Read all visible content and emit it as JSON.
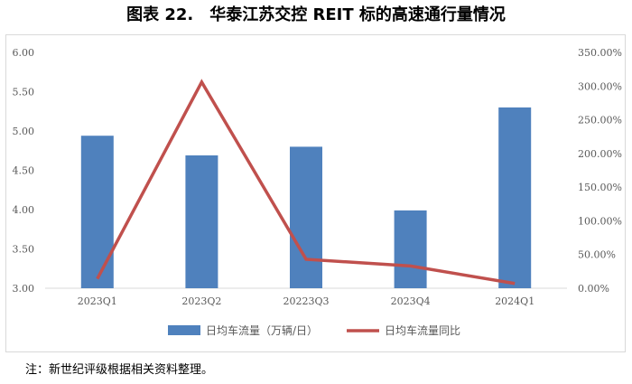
{
  "chart_data": {
    "type": "bar",
    "title": "图表 22.　华泰江苏交控 REIT 标的高速通行量情况",
    "categories": [
      "2023Q1",
      "2023Q2",
      "20223Q3",
      "2023Q4",
      "2024Q1"
    ],
    "series": [
      {
        "name": "日均车流量（万辆/日）",
        "type": "bar",
        "axis": "left",
        "color": "#4f81bd",
        "values": [
          4.94,
          4.69,
          4.8,
          3.99,
          5.3
        ]
      },
      {
        "name": "日均车流量同比",
        "type": "line",
        "axis": "right",
        "color": "#c0504d",
        "values": [
          0.14,
          3.06,
          0.43,
          0.33,
          0.07
        ]
      }
    ],
    "left_axis": {
      "min": 3.0,
      "max": 6.0,
      "ticks": [
        "3.00",
        "3.50",
        "4.00",
        "4.50",
        "5.00",
        "5.50",
        "6.00"
      ]
    },
    "right_axis": {
      "min": 0,
      "max": 3.5,
      "ticks": [
        "0.00%",
        "50.00%",
        "100.00%",
        "150.00%",
        "200.00%",
        "250.00%",
        "300.00%",
        "350.00%"
      ]
    },
    "grid": false,
    "legend_position": "bottom"
  },
  "note": "注：新世纪评级根据相关资料整理。"
}
